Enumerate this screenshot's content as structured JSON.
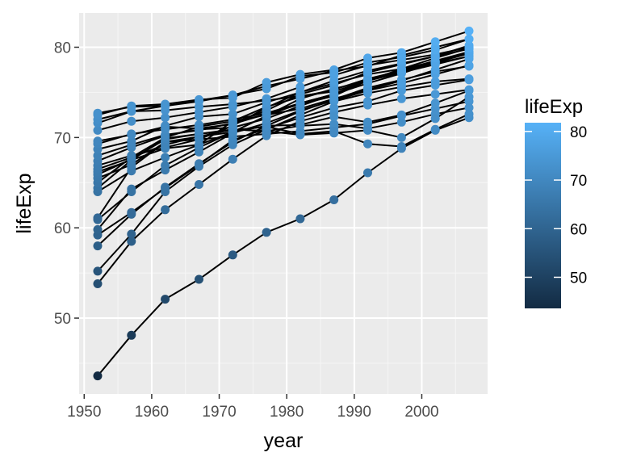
{
  "chart_data": {
    "type": "line",
    "title": "",
    "xlabel": "year",
    "ylabel": "lifeExp",
    "xlim": [
      1949.25,
      2009.75
    ],
    "ylim": [
      41.6,
      83.8
    ],
    "x_ticks": [
      1950,
      1960,
      1970,
      1980,
      1990,
      2000
    ],
    "x_tick_labels": [
      "1950",
      "1960",
      "1970",
      "1980",
      "1990",
      "2000"
    ],
    "y_ticks": [
      50,
      60,
      70,
      80
    ],
    "y_tick_labels": [
      "50",
      "60",
      "70",
      "80"
    ],
    "grid": true,
    "legend": {
      "title": "lifeExp",
      "placement": "right",
      "color_low": "#132b43",
      "color_high": "#56b1f7",
      "range": [
        43.6,
        81.8
      ],
      "ticks": [
        50,
        60,
        70,
        80
      ],
      "tick_labels": [
        "50",
        "60",
        "70",
        "80"
      ]
    },
    "line_color": "#000000",
    "x": [
      1952,
      1957,
      1962,
      1967,
      1972,
      1977,
      1982,
      1987,
      1992,
      1997,
      2002,
      2007
    ],
    "series": [
      {
        "values": [
          43.6,
          48.1,
          52.1,
          54.3,
          57.0,
          59.5,
          61.0,
          63.1,
          66.1,
          68.8,
          70.8,
          72.2
        ]
      },
      {
        "values": [
          53.8,
          58.5,
          62.0,
          64.8,
          67.6,
          70.2,
          71.8,
          72.8,
          73.6,
          74.3,
          74.8,
          75.3
        ]
      },
      {
        "values": [
          55.2,
          59.3,
          64.0,
          66.8,
          69.2,
          70.9,
          72.5,
          74.0,
          74.9,
          75.6,
          76.2,
          76.5
        ]
      },
      {
        "values": [
          58.0,
          61.5,
          64.5,
          67.1,
          69.5,
          71.3,
          72.9,
          74.2,
          75.5,
          76.4,
          77.3,
          77.9
        ]
      },
      {
        "values": [
          59.2,
          61.7,
          64.4,
          67.0,
          69.7,
          71.0,
          72.2,
          73.3,
          74.0,
          75.2,
          75.8,
          76.4
        ]
      },
      {
        "values": [
          59.8,
          64.3,
          66.4,
          68.4,
          70.5,
          71.6,
          73.0,
          74.1,
          75.2,
          76.0,
          77.0,
          78.0
        ]
      },
      {
        "values": [
          60.9,
          64.0,
          66.9,
          68.9,
          70.6,
          72.4,
          74.3,
          75.4,
          76.3,
          77.2,
          78.2,
          79.0
        ]
      },
      {
        "values": [
          61.1,
          66.7,
          69.5,
          69.8,
          70.1,
          70.4,
          70.7,
          71.1,
          71.5,
          72.4,
          73.2,
          74.0
        ]
      },
      {
        "values": [
          64.0,
          66.3,
          67.8,
          69.2,
          70.6,
          72.4,
          73.8,
          74.8,
          76.4,
          77.5,
          78.5,
          79.5
        ]
      },
      {
        "values": [
          64.4,
          67.5,
          69.9,
          70.4,
          70.9,
          70.7,
          71.3,
          71.5,
          71.0,
          71.7,
          72.6,
          73.3
        ]
      },
      {
        "values": [
          65.0,
          67.8,
          70.0,
          71.2,
          71.8,
          72.5,
          73.2,
          74.3,
          75.3,
          76.3,
          77.5,
          78.7
        ]
      },
      {
        "values": [
          65.5,
          67.0,
          69.5,
          70.1,
          70.9,
          70.7,
          70.3,
          70.5,
          70.8,
          70.0,
          72.1,
          74.5
        ]
      },
      {
        "values": [
          65.9,
          67.6,
          69.8,
          70.4,
          70.8,
          71.2,
          70.4,
          70.7,
          69.3,
          69.0,
          70.9,
          72.6
        ]
      },
      {
        "values": [
          66.2,
          67.5,
          68.8,
          69.2,
          71.8,
          73.4,
          74.5,
          75.3,
          76.5,
          77.4,
          78.3,
          79.4
        ]
      },
      {
        "values": [
          66.5,
          67.8,
          69.2,
          70.1,
          70.6,
          71.3,
          71.4,
          72.3,
          71.7,
          72.5,
          73.8,
          75.2
        ]
      },
      {
        "values": [
          66.9,
          68.0,
          68.9,
          69.8,
          71.3,
          73.3,
          75.0,
          76.0,
          77.0,
          77.6,
          78.4,
          79.4
        ]
      },
      {
        "values": [
          67.4,
          68.9,
          70.2,
          70.9,
          71.1,
          72.1,
          73.5,
          74.8,
          76.4,
          77.3,
          78.4,
          79.4
        ]
      },
      {
        "values": [
          68.0,
          69.2,
          70.3,
          70.8,
          71.6,
          73.0,
          74.8,
          75.8,
          77.2,
          78.1,
          79.0,
          80.2
        ]
      },
      {
        "values": [
          68.7,
          69.6,
          71.3,
          72.3,
          72.6,
          73.9,
          75.0,
          76.3,
          77.4,
          78.2,
          79.0,
          79.8
        ]
      },
      {
        "values": [
          69.3,
          70.4,
          70.9,
          71.4,
          72.0,
          72.7,
          73.8,
          74.8,
          76.0,
          77.1,
          78.3,
          79.3
        ]
      },
      {
        "values": [
          69.6,
          70.3,
          71.2,
          71.0,
          71.5,
          72.6,
          73.7,
          74.6,
          76.3,
          77.2,
          78.1,
          79.0
        ]
      },
      {
        "values": [
          70.8,
          71.8,
          72.2,
          72.8,
          73.4,
          74.3,
          75.6,
          76.9,
          78.0,
          78.6,
          79.2,
          80.0
        ]
      },
      {
        "values": [
          71.6,
          72.9,
          73.5,
          74.0,
          74.7,
          75.7,
          76.5,
          77.4,
          77.9,
          79.1,
          80.0,
          80.9
        ]
      },
      {
        "values": [
          72.0,
          72.9,
          73.0,
          73.4,
          73.7,
          74.1,
          74.6,
          75.1,
          76.3,
          77.6,
          78.8,
          79.9
        ]
      },
      {
        "values": [
          72.5,
          73.5,
          73.7,
          74.2,
          74.4,
          76.1,
          77.0,
          77.5,
          78.8,
          79.4,
          80.6,
          81.8
        ]
      },
      {
        "values": [
          72.7,
          73.4,
          73.5,
          74.1,
          74.7,
          75.4,
          76.8,
          77.2,
          78.3,
          78.9,
          79.7,
          80.9
        ]
      }
    ]
  }
}
